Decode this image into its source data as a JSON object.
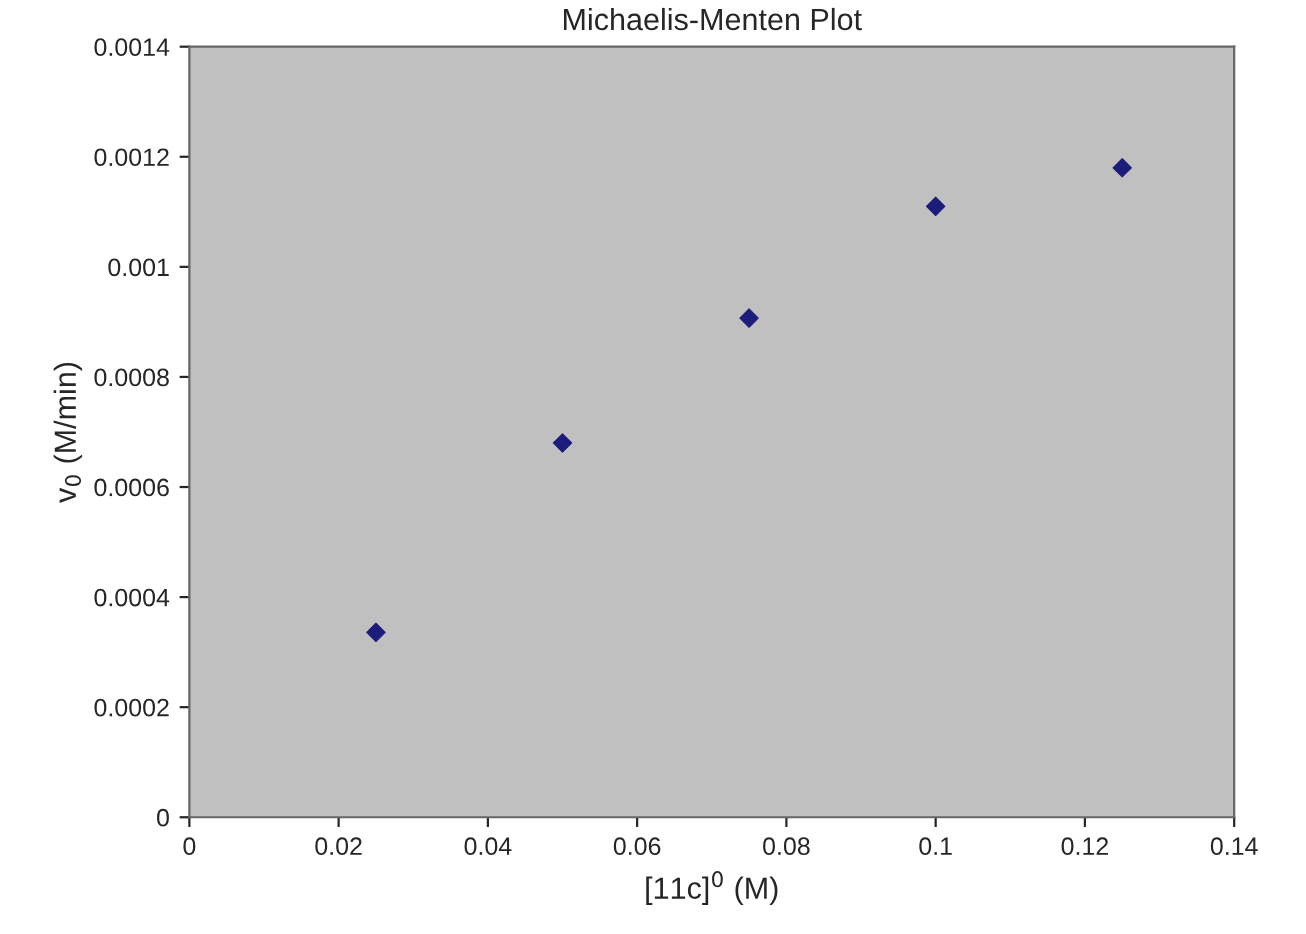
{
  "chart_data": {
    "type": "scatter",
    "title": "Michaelis-Menten Plot",
    "xlabel": "[11c]$^{0}$ (M)",
    "ylabel": "v$_{0}$ (M/min)",
    "x": [
      0.025,
      0.05,
      0.075,
      0.1,
      0.125
    ],
    "series": [
      {
        "color": "#1c1c7a",
        "values": [
          0.000336,
          0.00068,
          0.000907,
          0.00111,
          0.00118
        ]
      }
    ],
    "xlim": [
      0,
      0.14
    ],
    "xticks": [
      0,
      0.02,
      0.04,
      0.06,
      0.08,
      0.1,
      0.12,
      0.14
    ],
    "ylim": [
      0,
      0.0014
    ],
    "yticks": [
      0,
      0.0002,
      0.0004,
      0.0006,
      0.0008,
      0.001,
      0.0012,
      0.0014
    ],
    "marker": "diamond",
    "grid": false,
    "legend": false
  }
}
